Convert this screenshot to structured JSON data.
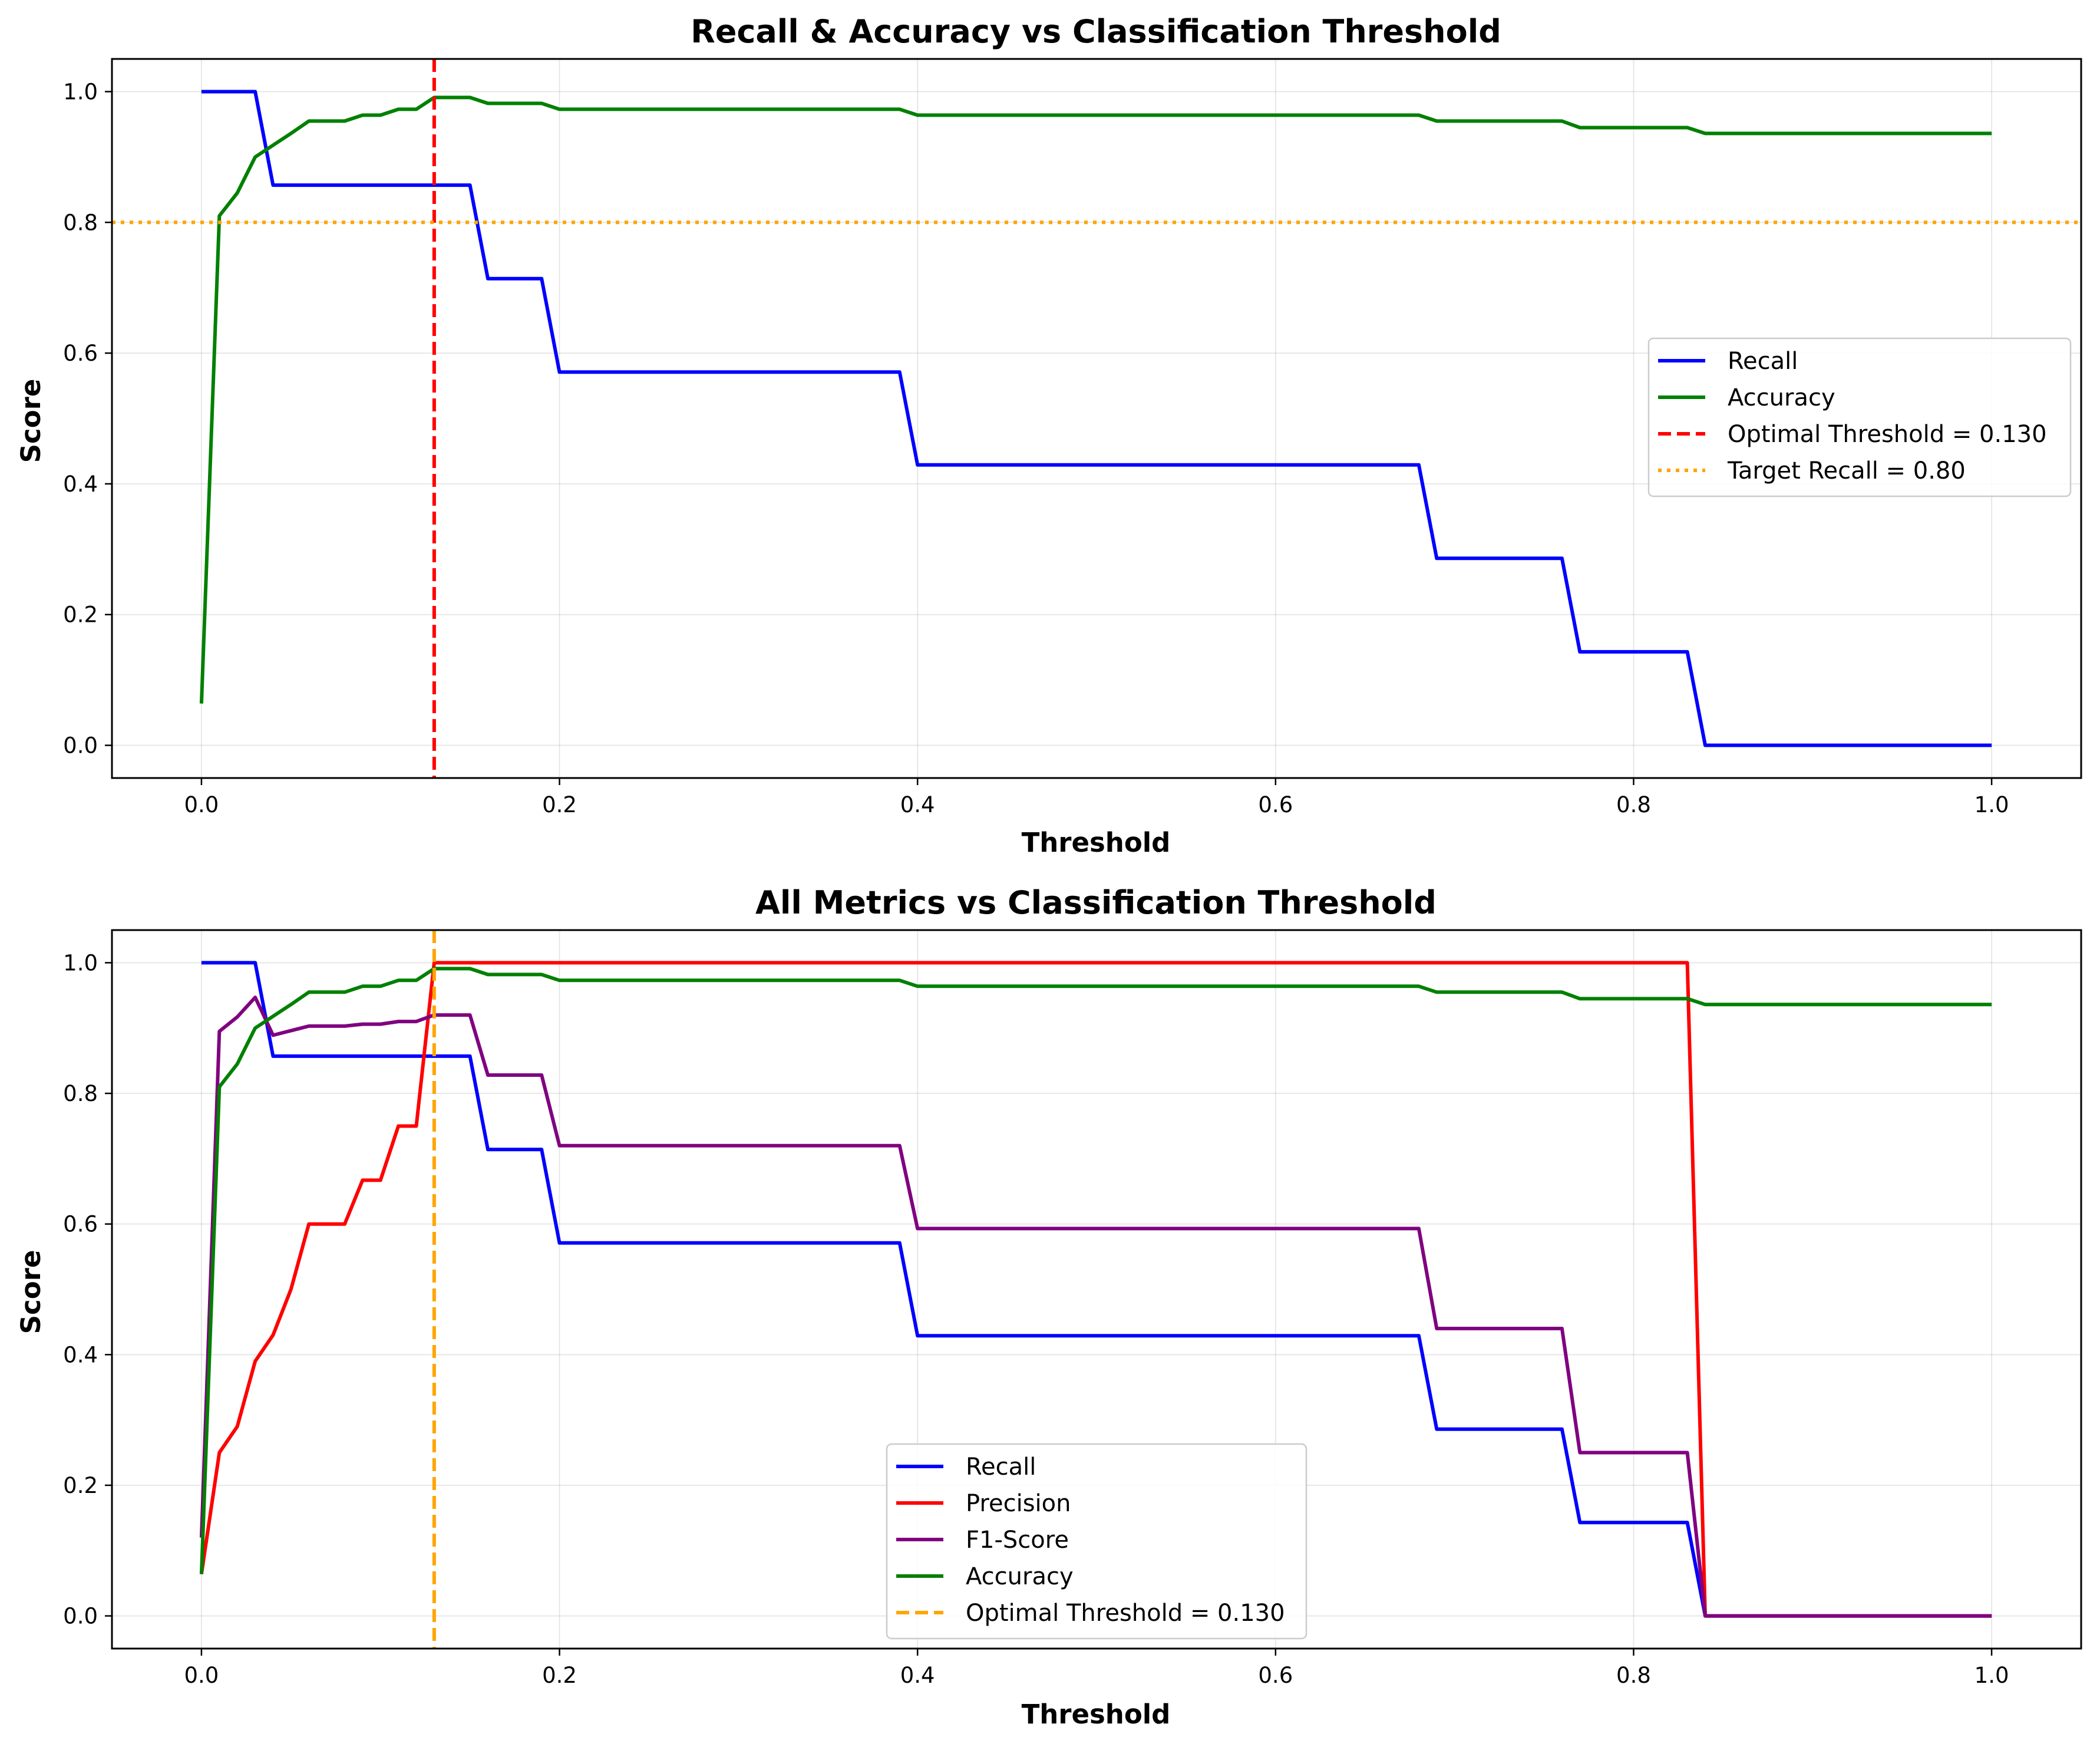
{
  "chart_data": [
    {
      "type": "line",
      "title": "Recall & Accuracy vs Classification Threshold",
      "xlabel": "Threshold",
      "ylabel": "Score",
      "xlim": [
        -0.05,
        1.05
      ],
      "ylim": [
        -0.05,
        1.05
      ],
      "xticks": [
        0.0,
        0.2,
        0.4,
        0.6,
        0.8,
        1.0
      ],
      "xtick_labels": [
        "0.0",
        "0.2",
        "0.4",
        "0.6",
        "0.8",
        "1.0"
      ],
      "yticks": [
        0.0,
        0.2,
        0.4,
        0.6,
        0.8,
        1.0
      ],
      "ytick_labels": [
        "0.0",
        "0.2",
        "0.4",
        "0.6",
        "0.8",
        "1.0"
      ],
      "grid": true,
      "legend_position": "center-right",
      "series": [
        {
          "name": "Recall",
          "color": "#0000ff",
          "style": "solid",
          "x": [
            0.0,
            0.03,
            0.04,
            0.15,
            0.16,
            0.19,
            0.2,
            0.39,
            0.4,
            0.68,
            0.69,
            0.76,
            0.77,
            0.83,
            0.84,
            1.0
          ],
          "y": [
            1.0,
            1.0,
            0.857,
            0.857,
            0.714,
            0.714,
            0.571,
            0.571,
            0.429,
            0.429,
            0.286,
            0.286,
            0.143,
            0.143,
            0.0,
            0.0
          ]
        },
        {
          "name": "Accuracy",
          "color": "#008000",
          "style": "solid",
          "x": [
            0.0,
            0.01,
            0.02,
            0.03,
            0.04,
            0.05,
            0.06,
            0.08,
            0.09,
            0.1,
            0.11,
            0.12,
            0.13,
            0.15,
            0.16,
            0.19,
            0.2,
            0.39,
            0.4,
            0.68,
            0.69,
            0.76,
            0.77,
            0.83,
            0.84,
            1.0
          ],
          "y": [
            0.064,
            0.81,
            0.845,
            0.9,
            0.918,
            0.936,
            0.955,
            0.955,
            0.964,
            0.964,
            0.973,
            0.973,
            0.991,
            0.991,
            0.982,
            0.982,
            0.973,
            0.973,
            0.964,
            0.964,
            0.955,
            0.955,
            0.945,
            0.945,
            0.936,
            0.936
          ]
        },
        {
          "name": "Optimal Threshold = 0.130",
          "color": "#ff0000",
          "style": "dashed",
          "vline": 0.13
        },
        {
          "name": "Target Recall = 0.80",
          "color": "#ffa500",
          "style": "dotted",
          "hline": 0.8
        }
      ]
    },
    {
      "type": "line",
      "title": "All Metrics vs Classification Threshold",
      "xlabel": "Threshold",
      "ylabel": "Score",
      "xlim": [
        -0.05,
        1.05
      ],
      "ylim": [
        -0.05,
        1.05
      ],
      "xticks": [
        0.0,
        0.2,
        0.4,
        0.6,
        0.8,
        1.0
      ],
      "xtick_labels": [
        "0.0",
        "0.2",
        "0.4",
        "0.6",
        "0.8",
        "1.0"
      ],
      "yticks": [
        0.0,
        0.2,
        0.4,
        0.6,
        0.8,
        1.0
      ],
      "ytick_labels": [
        "0.0",
        "0.2",
        "0.4",
        "0.6",
        "0.8",
        "1.0"
      ],
      "grid": true,
      "legend_position": "lower-center",
      "series": [
        {
          "name": "Recall",
          "color": "#0000ff",
          "style": "solid",
          "x": [
            0.0,
            0.03,
            0.04,
            0.15,
            0.16,
            0.19,
            0.2,
            0.39,
            0.4,
            0.68,
            0.69,
            0.76,
            0.77,
            0.83,
            0.84,
            1.0
          ],
          "y": [
            1.0,
            1.0,
            0.857,
            0.857,
            0.714,
            0.714,
            0.571,
            0.571,
            0.429,
            0.429,
            0.286,
            0.286,
            0.143,
            0.143,
            0.0,
            0.0
          ]
        },
        {
          "name": "Precision",
          "color": "#ff0000",
          "style": "solid",
          "x": [
            0.0,
            0.01,
            0.02,
            0.03,
            0.04,
            0.05,
            0.06,
            0.08,
            0.09,
            0.1,
            0.11,
            0.12,
            0.13,
            0.83,
            0.84,
            1.0
          ],
          "y": [
            0.064,
            0.25,
            0.29,
            0.39,
            0.43,
            0.5,
            0.6,
            0.6,
            0.667,
            0.667,
            0.75,
            0.75,
            1.0,
            1.0,
            0.0,
            0.0
          ]
        },
        {
          "name": "F1-Score",
          "color": "#800080",
          "style": "solid",
          "x": [
            0.0,
            0.01,
            0.02,
            0.03,
            0.04,
            0.06,
            0.08,
            0.09,
            0.1,
            0.11,
            0.12,
            0.13,
            0.15,
            0.16,
            0.19,
            0.2,
            0.39,
            0.4,
            0.68,
            0.69,
            0.76,
            0.77,
            0.83,
            0.84,
            1.0
          ],
          "y": [
            0.12,
            0.895,
            0.917,
            0.947,
            0.889,
            0.903,
            0.903,
            0.906,
            0.906,
            0.91,
            0.91,
            0.92,
            0.92,
            0.828,
            0.828,
            0.72,
            0.72,
            0.593,
            0.593,
            0.44,
            0.44,
            0.25,
            0.25,
            0.0,
            0.0
          ]
        },
        {
          "name": "Accuracy",
          "color": "#008000",
          "style": "solid",
          "x": [
            0.0,
            0.01,
            0.02,
            0.03,
            0.04,
            0.05,
            0.06,
            0.08,
            0.09,
            0.1,
            0.11,
            0.12,
            0.13,
            0.15,
            0.16,
            0.19,
            0.2,
            0.39,
            0.4,
            0.68,
            0.69,
            0.76,
            0.77,
            0.83,
            0.84,
            1.0
          ],
          "y": [
            0.064,
            0.81,
            0.845,
            0.9,
            0.918,
            0.936,
            0.955,
            0.955,
            0.964,
            0.964,
            0.973,
            0.973,
            0.991,
            0.991,
            0.982,
            0.982,
            0.973,
            0.973,
            0.964,
            0.964,
            0.955,
            0.955,
            0.945,
            0.945,
            0.936,
            0.936
          ]
        },
        {
          "name": "Optimal Threshold = 0.130",
          "color": "#ffa500",
          "style": "dashed",
          "vline": 0.13
        }
      ]
    }
  ]
}
